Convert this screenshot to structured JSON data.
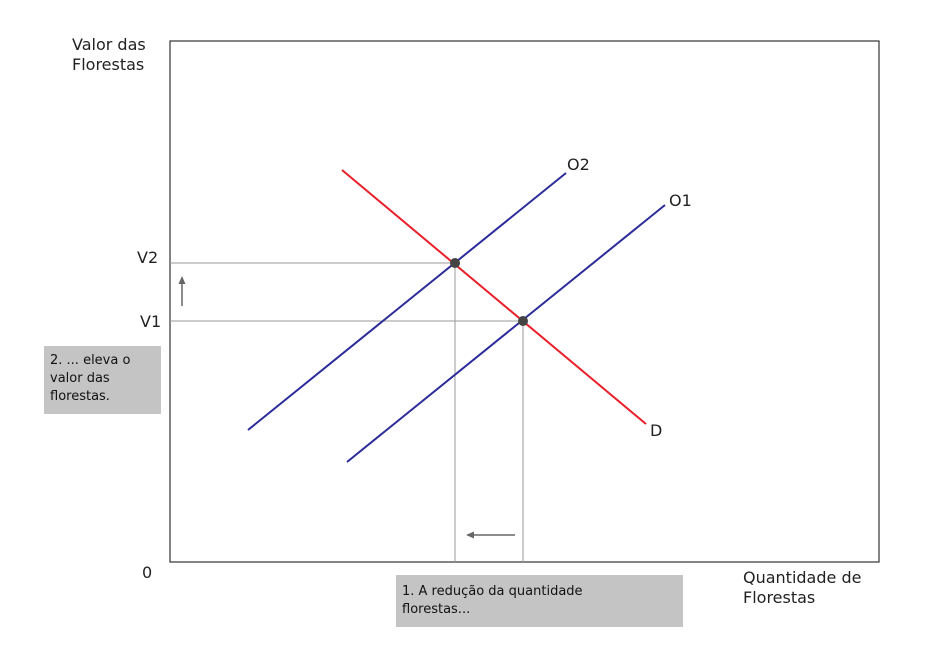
{
  "axes": {
    "y_label_line1": "Valor das",
    "y_label_line2": "Florestas",
    "x_label_line1": "Quantidade de",
    "x_label_line2": "Florestas",
    "origin": "0"
  },
  "price_labels": {
    "v2": "V2",
    "v1": "V1"
  },
  "curves": {
    "o2": {
      "label": "O2",
      "color": "#2b2b9a"
    },
    "o1": {
      "label": "O1",
      "color": "#2b2b9a"
    },
    "d": {
      "label": "D",
      "color": "#e8202a"
    }
  },
  "notes": {
    "left_line1": "2. ... eleva o",
    "left_line2": "valor das",
    "left_line3": "florestas.",
    "bottom_line1": "1. A redução da quantidade",
    "bottom_line2": "florestas..."
  },
  "colors": {
    "note_bg": "#c4c4c4",
    "guide_line": "#9a9a9a",
    "arrow": "#666666",
    "point": "#444444"
  }
}
